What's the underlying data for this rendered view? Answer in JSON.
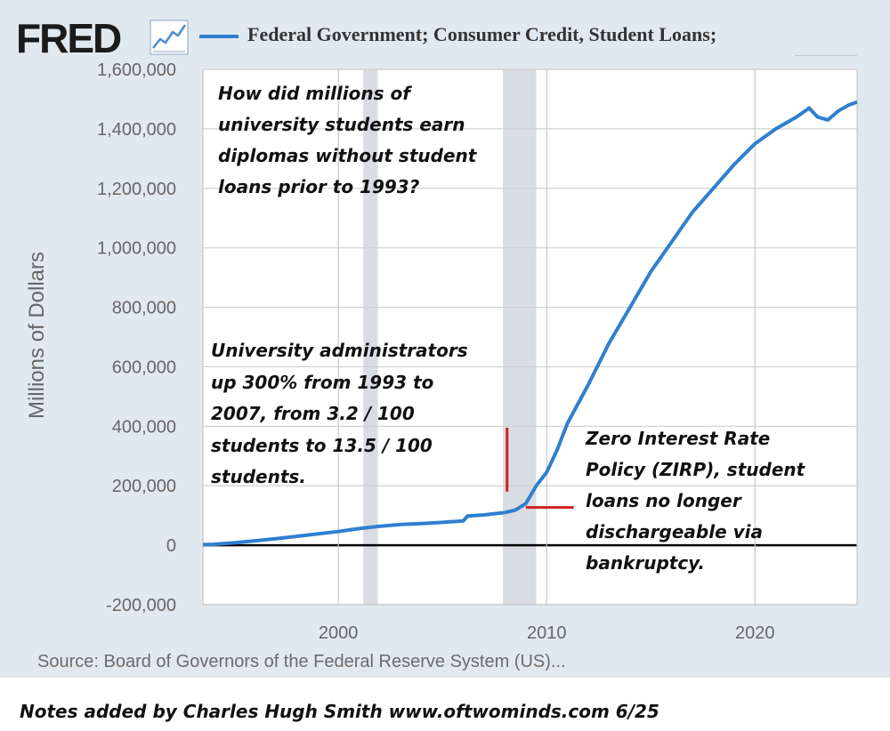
{
  "header": {
    "logo_text": "FRED",
    "logo_icon": "line-chart-icon",
    "legend_label": "Federal Government; Consumer Credit, Student Loans;"
  },
  "colors": {
    "series": "#2f7fd0",
    "recession": "#d9dde3",
    "background": "#e1e9f0",
    "annotation_line": "#cc2222"
  },
  "annotations": {
    "note_1": "How did millions of\nuniversity students earn\ndiplomas without student\nloans prior to 1993?",
    "note_2": "University administrators\nup 300% from 1993 to\n2007, from 3.2 / 100\nstudents to 13.5 / 100\nstudents.",
    "note_3": "Zero Interest Rate\nPolicy (ZIRP), student\nloans no longer\ndischargeable via\nbankruptcy."
  },
  "footer": {
    "source": "Source: Board of Governors of the Federal Reserve System (US)...",
    "credit": "Notes added by Charles Hugh Smith  www.oftwominds.com  6/25"
  },
  "chart_data": {
    "type": "line",
    "title": "",
    "xlabel": "",
    "ylabel": "Millions of Dollars",
    "xlim": [
      1993.5,
      2024.9
    ],
    "ylim": [
      -200000,
      1600000
    ],
    "yticks": [
      -200000,
      0,
      200000,
      400000,
      600000,
      800000,
      1000000,
      1200000,
      1400000,
      1600000
    ],
    "ytick_labels": [
      "-200,000",
      "0",
      "200,000",
      "400,000",
      "600,000",
      "800,000",
      "1,000,000",
      "1,200,000",
      "1,400,000",
      "1,600,000"
    ],
    "xticks": [
      2000,
      2010,
      2020
    ],
    "xtick_labels": [
      "2000",
      "2010",
      "2020"
    ],
    "grid": true,
    "recessions": [
      [
        2001.2,
        2001.9
      ],
      [
        2007.9,
        2009.5
      ]
    ],
    "series": [
      {
        "name": "Federal Government; Consumer Credit, Student Loans;",
        "x": [
          1993.5,
          1994,
          1995,
          1996,
          1997,
          1998,
          1999,
          2000,
          2001,
          2002,
          2003,
          2004,
          2005,
          2006,
          2006.2,
          2007,
          2008,
          2008.5,
          2009,
          2009.5,
          2010,
          2010.5,
          2011,
          2012,
          2013,
          2014,
          2015,
          2016,
          2017,
          2018,
          2019,
          2020,
          2021,
          2022,
          2022.6,
          2023,
          2023.5,
          2024,
          2024.5,
          2024.9
        ],
        "y": [
          2000,
          3000,
          8000,
          15000,
          22000,
          30000,
          38000,
          46000,
          56000,
          64000,
          70000,
          73000,
          77000,
          82000,
          98000,
          102000,
          110000,
          118000,
          140000,
          200000,
          245000,
          320000,
          410000,
          540000,
          680000,
          800000,
          920000,
          1020000,
          1120000,
          1200000,
          1280000,
          1350000,
          1400000,
          1440000,
          1470000,
          1440000,
          1430000,
          1460000,
          1480000,
          1490000
        ]
      }
    ]
  }
}
